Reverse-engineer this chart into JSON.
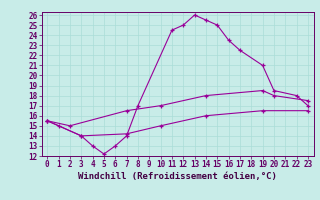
{
  "title": "",
  "xlabel": "Windchill (Refroidissement éolien,°C)",
  "bg_color": "#c8ece8",
  "line_color": "#990099",
  "grid_color": "#aaddd8",
  "ylim": [
    12,
    26
  ],
  "xlim": [
    0,
    23
  ],
  "yticks": [
    12,
    13,
    14,
    15,
    16,
    17,
    18,
    19,
    20,
    21,
    22,
    23,
    24,
    25,
    26
  ],
  "xticks": [
    0,
    1,
    2,
    3,
    4,
    5,
    6,
    7,
    8,
    9,
    10,
    11,
    12,
    13,
    14,
    15,
    16,
    17,
    18,
    19,
    20,
    21,
    22,
    23
  ],
  "line1_x": [
    0,
    1,
    3,
    4,
    5,
    6,
    7,
    8,
    11,
    12,
    13,
    14,
    15,
    16,
    17,
    19,
    20,
    22,
    23
  ],
  "line1_y": [
    15.5,
    15.0,
    14.0,
    13.0,
    12.2,
    13.0,
    14.0,
    17.0,
    24.5,
    25.0,
    26.0,
    25.5,
    25.0,
    23.5,
    22.5,
    21.0,
    18.5,
    18.0,
    17.0
  ],
  "line2_x": [
    0,
    2,
    7,
    10,
    14,
    19,
    20,
    23
  ],
  "line2_y": [
    15.5,
    15.0,
    16.5,
    17.0,
    18.0,
    18.5,
    18.0,
    17.5
  ],
  "line3_x": [
    0,
    3,
    7,
    10,
    14,
    19,
    23
  ],
  "line3_y": [
    15.5,
    14.0,
    14.2,
    15.0,
    16.0,
    16.5,
    16.5
  ],
  "tick_fontsize": 5.5,
  "label_fontsize": 6.5
}
